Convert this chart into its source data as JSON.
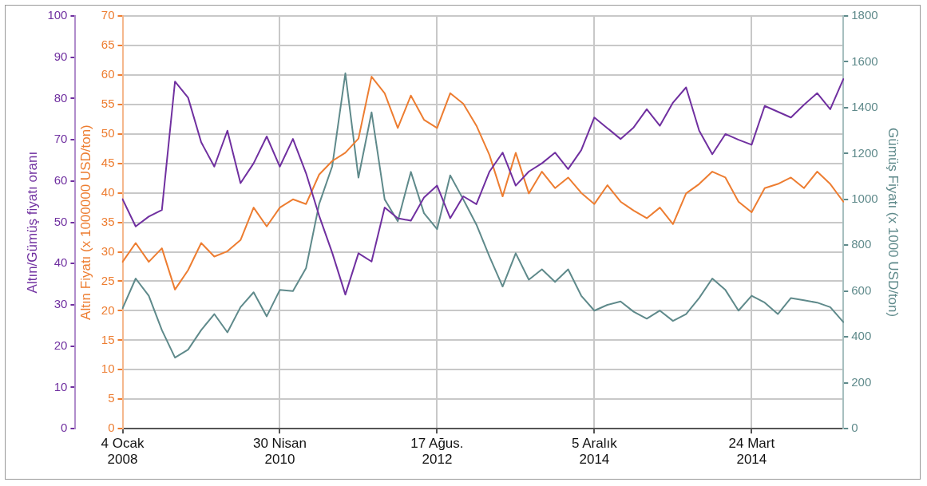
{
  "chart_data": {
    "type": "line",
    "ylabel": "Altın/Gümüş fiyatı oranı",
    "y2label": "Altın Fiyatı (x 1000000 USD/ton)",
    "y3label": "Gümüş Fiyatı (x 1000 USD/ton)",
    "categories": [
      "4 Ocak 2008",
      null,
      null,
      null,
      null,
      null,
      null,
      null,
      null,
      null,
      null,
      null,
      "30 Nisan 2010",
      null,
      null,
      null,
      null,
      null,
      null,
      null,
      null,
      null,
      null,
      null,
      "17 Ağus. 2012",
      null,
      null,
      null,
      null,
      null,
      null,
      null,
      null,
      null,
      null,
      null,
      "5 Aralık 2014",
      null,
      null,
      null,
      null,
      null,
      null,
      null,
      null,
      null,
      null,
      null,
      "24 Mart 2014",
      null,
      null,
      null,
      null,
      null,
      null,
      null
    ],
    "ylim": [
      0,
      100
    ],
    "yticks": [
      0,
      10,
      20,
      30,
      40,
      50,
      60,
      70,
      80,
      90,
      100
    ],
    "y2lim": [
      0,
      70
    ],
    "y2ticks": [
      0,
      5,
      10,
      15,
      20,
      25,
      30,
      35,
      40,
      45,
      50,
      55,
      60,
      65,
      70
    ],
    "y3lim": [
      0,
      1800
    ],
    "y3ticks": [
      0,
      200,
      400,
      600,
      800,
      1000,
      1200,
      1400,
      1600,
      1800
    ],
    "grid": true,
    "marker": "none",
    "line_style": "solid",
    "series": [
      {
        "color": "#7030a0",
        "axis": "y",
        "values": [
          55.6,
          49.0,
          51.4,
          53.0,
          84.1,
          80.2,
          69.4,
          63.5,
          72.2,
          59.5,
          64.3,
          70.8,
          63.5,
          70.2,
          61.9,
          51.6,
          42.6,
          32.5,
          42.5,
          40.5,
          53.6,
          51.0,
          50.4,
          56,
          58.9,
          51.0,
          56.3,
          54.4,
          62.3,
          66.9,
          58.9,
          62.3,
          64.3,
          66.9,
          62.9,
          67.5,
          75.4,
          72.8,
          70.2,
          73,
          77.4,
          73.4,
          79,
          82.7,
          72.2,
          66.5,
          71.4,
          70,
          68.8,
          78.2,
          76.8,
          75.4,
          78.5,
          81.3,
          77.4,
          84.7
        ]
      },
      {
        "color": "#ed7d31",
        "axis": "y2",
        "values": [
          28.3,
          31.5,
          28.3,
          30.6,
          23.6,
          26.9,
          31.5,
          29.2,
          30.1,
          32,
          37.5,
          34.3,
          37.5,
          38.9,
          38.1,
          43.1,
          45.4,
          46.8,
          49.2,
          59.7,
          56.9,
          51.0,
          56.5,
          52.4,
          51.0,
          56.9,
          55.1,
          51.4,
          46.4,
          39.4,
          46.8,
          39.9,
          43.6,
          40.8,
          42.6,
          40,
          38.1,
          41.3,
          38.5,
          37,
          35.7,
          37.5,
          34.7,
          39.9,
          41.5,
          43.6,
          42.6,
          38.5,
          36.7,
          40.8,
          41.5,
          42.6,
          40.8,
          43.6,
          41.5,
          38.5
        ]
      },
      {
        "color": "#5f8a8b",
        "axis": "y3",
        "values": [
          525,
          655,
          580,
          430,
          310,
          345,
          430,
          500,
          420,
          530,
          595,
          490,
          605,
          600,
          700,
          980,
          1145,
          1550,
          1095,
          1380,
          1000,
          905,
          1120,
          940,
          870,
          1105,
          1000,
          890,
          750,
          620,
          765,
          650,
          695,
          640,
          695,
          580,
          515,
          540,
          555,
          510,
          480,
          515,
          470,
          500,
          570,
          655,
          605,
          515,
          580,
          550,
          500,
          570,
          560,
          550,
          530,
          465
        ]
      }
    ]
  }
}
